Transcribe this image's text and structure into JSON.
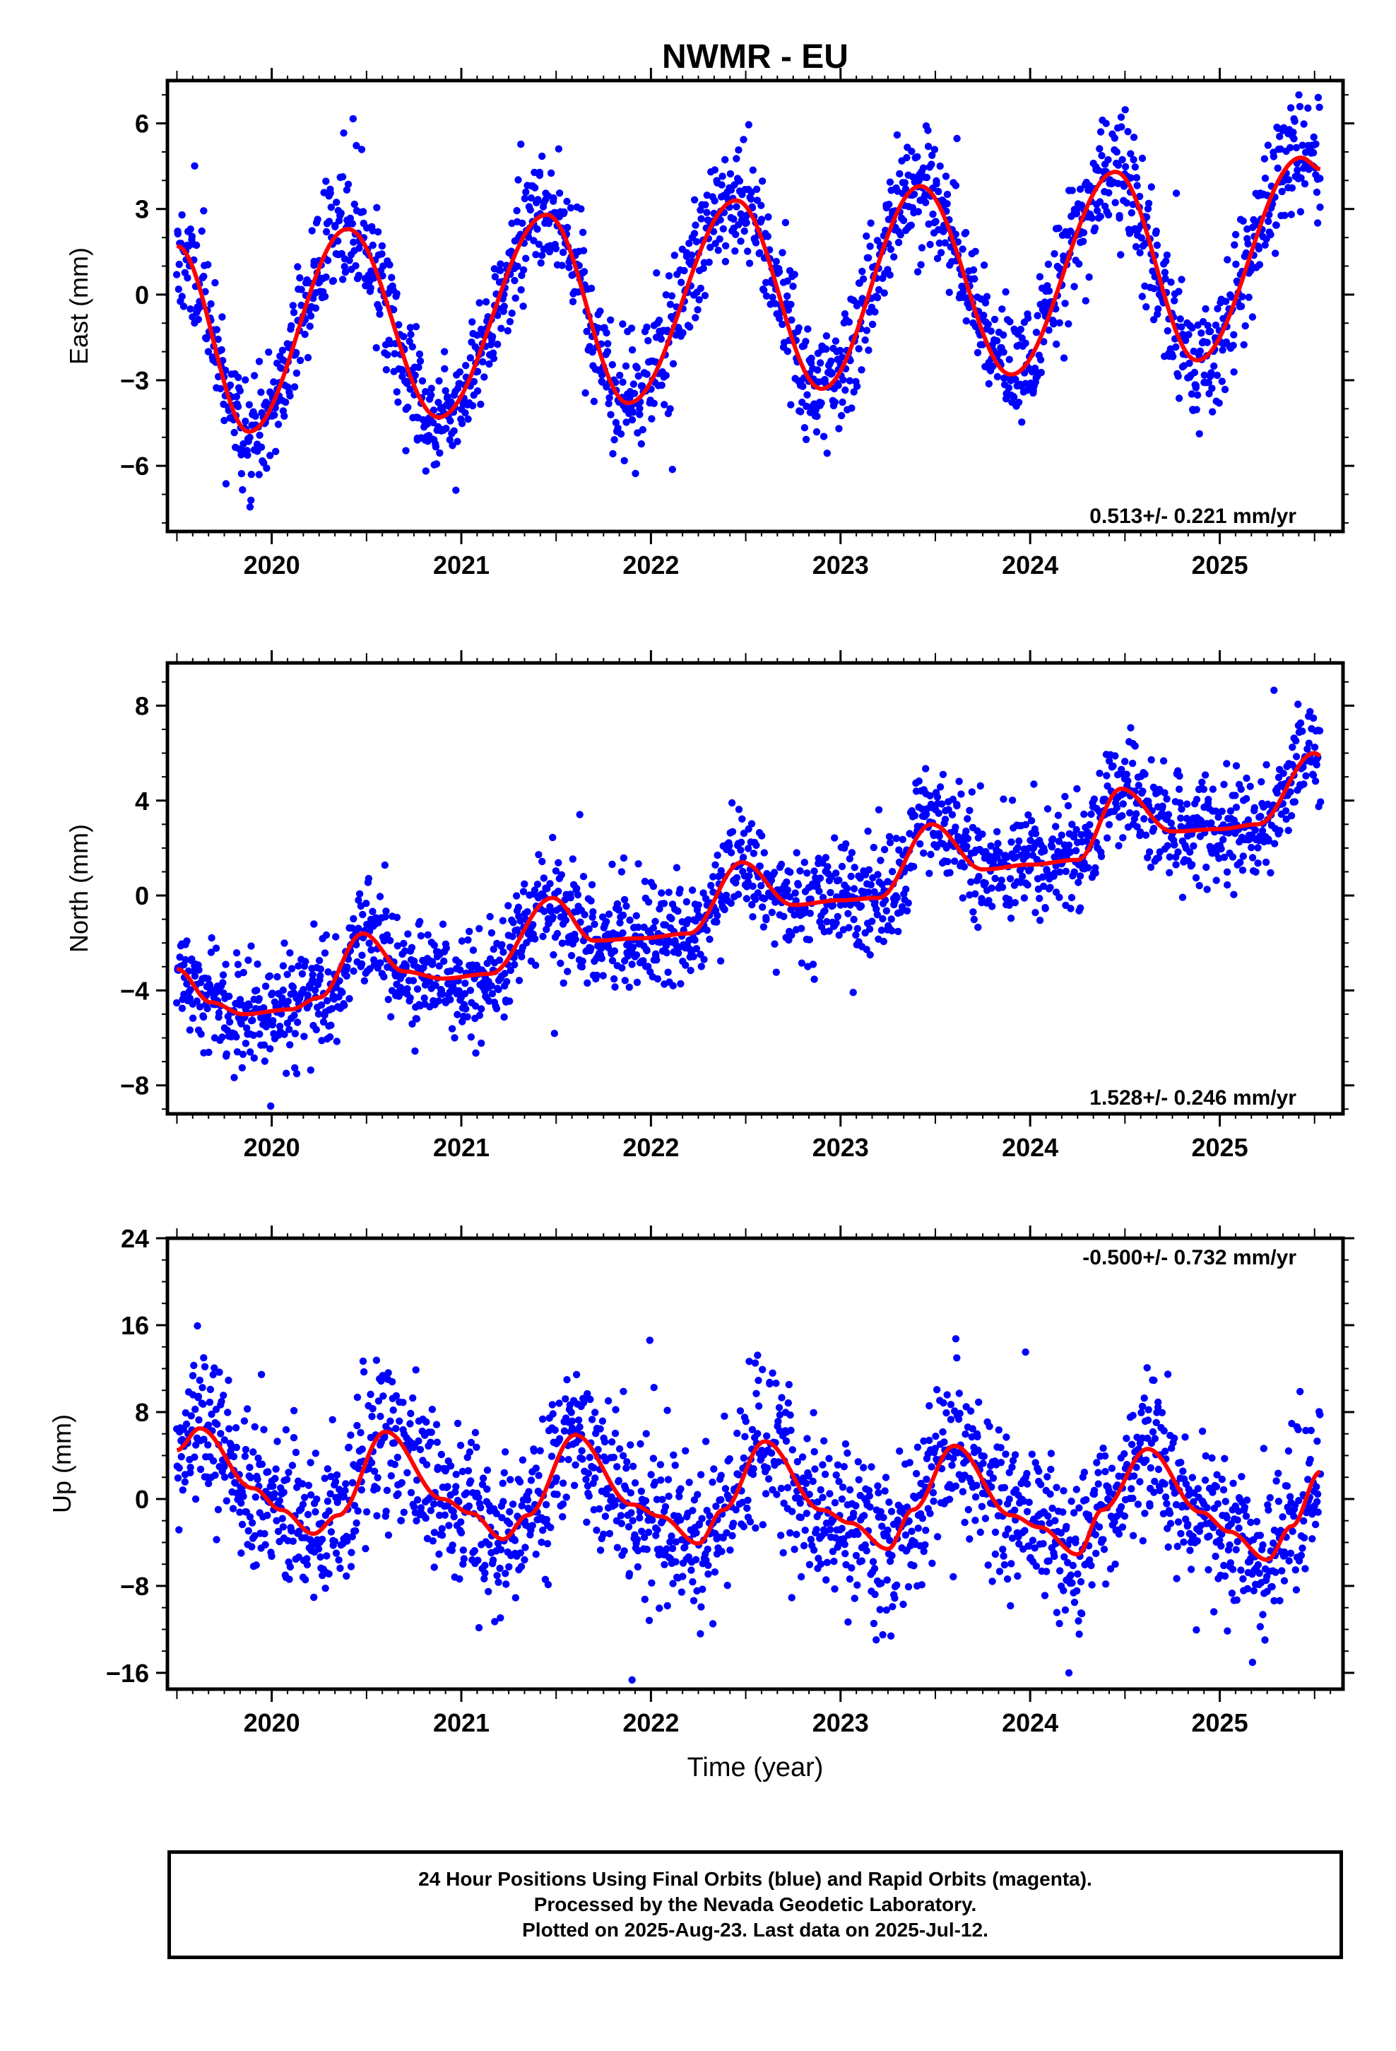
{
  "title": "NWMR - EU",
  "xlabel": "Time (year)",
  "caption": [
    "24 Hour Positions Using Final Orbits (blue) and Rapid Orbits (magenta).",
    "Processed by the Nevada Geodetic Laboratory.",
    "Plotted on 2025-Aug-23. Last data on 2025-Jul-12."
  ],
  "colors": {
    "points": "#0000ff",
    "trend": "#ff0000",
    "axes": "#000000"
  },
  "chart_data": [
    {
      "type": "scatter",
      "panel": "east",
      "ylabel": "East (mm)",
      "xlim": [
        2019.45,
        2025.65
      ],
      "ylim": [
        -8.3,
        7.5
      ],
      "xticks": [
        2020,
        2021,
        2022,
        2023,
        2024,
        2025
      ],
      "yticks": [
        6,
        3,
        0,
        -3,
        -6
      ],
      "rate_text": "0.513+/- 0.221 mm/yr",
      "rate_position": "bottom-right",
      "series": [
        {
          "kind": "daily-positions",
          "start": 2019.5,
          "end": 2025.53,
          "n": 1900,
          "noise_mm": 1.05,
          "seed": 11
        },
        {
          "kind": "trend-fit",
          "x": [
            2019.5,
            2019.88,
            2020.4,
            2020.88,
            2021.45,
            2021.88,
            2022.45,
            2022.9,
            2023.42,
            2023.9,
            2024.45,
            2024.88,
            2025.43,
            2025.53
          ],
          "y": [
            1.7,
            -4.8,
            2.3,
            -4.3,
            2.8,
            -3.8,
            3.3,
            -3.3,
            3.8,
            -2.8,
            4.3,
            -2.3,
            4.8,
            4.4
          ]
        }
      ]
    },
    {
      "type": "scatter",
      "panel": "north",
      "ylabel": "North (mm)",
      "xlim": [
        2019.45,
        2025.65
      ],
      "ylim": [
        -9.2,
        9.8
      ],
      "xticks": [
        2020,
        2021,
        2022,
        2023,
        2024,
        2025
      ],
      "yticks": [
        8,
        4,
        0,
        -4,
        -8
      ],
      "rate_text": "1.528+/- 0.246 mm/yr",
      "rate_position": "bottom-right",
      "series": [
        {
          "kind": "daily-positions",
          "start": 2019.5,
          "end": 2025.53,
          "n": 1900,
          "noise_mm": 1.1,
          "seed": 23
        },
        {
          "kind": "trend-fit",
          "x": [
            2019.5,
            2019.68,
            2019.85,
            2020.1,
            2020.25,
            2020.48,
            2020.7,
            2020.9,
            2021.15,
            2021.48,
            2021.7,
            2021.95,
            2022.2,
            2022.48,
            2022.75,
            2023.0,
            2023.2,
            2023.48,
            2023.75,
            2024.0,
            2024.25,
            2024.48,
            2024.75,
            2025.0,
            2025.2,
            2025.5,
            2025.53
          ],
          "y": [
            -3.1,
            -4.5,
            -5.0,
            -4.8,
            -4.3,
            -1.6,
            -3.2,
            -3.5,
            -3.3,
            -0.1,
            -1.9,
            -1.8,
            -1.6,
            1.4,
            -0.4,
            -0.2,
            -0.1,
            3.0,
            1.1,
            1.3,
            1.5,
            4.5,
            2.7,
            2.8,
            3.0,
            6.0,
            5.9
          ]
        }
      ]
    },
    {
      "type": "scatter",
      "panel": "up",
      "ylabel": "Up (mm)",
      "xlim": [
        2019.45,
        2025.65
      ],
      "ylim": [
        -17.5,
        24.0
      ],
      "xticks": [
        2020,
        2021,
        2022,
        2023,
        2024,
        2025
      ],
      "yticks": [
        24,
        16,
        8,
        0,
        -8,
        -16
      ],
      "rate_text": "-0.500+/- 0.732 mm/yr",
      "rate_position": "top-right",
      "series": [
        {
          "kind": "daily-positions",
          "start": 2019.5,
          "end": 2025.53,
          "n": 1900,
          "noise_mm": 3.6,
          "seed": 37
        },
        {
          "kind": "trend-fit",
          "x": [
            2019.5,
            2019.62,
            2019.9,
            2020.05,
            2020.22,
            2020.35,
            2020.6,
            2020.9,
            2021.05,
            2021.22,
            2021.35,
            2021.6,
            2021.9,
            2022.05,
            2022.25,
            2022.38,
            2022.6,
            2022.9,
            2023.05,
            2023.25,
            2023.38,
            2023.6,
            2023.9,
            2024.05,
            2024.25,
            2024.38,
            2024.62,
            2024.9,
            2025.05,
            2025.25,
            2025.38,
            2025.53
          ],
          "y": [
            4.5,
            6.5,
            1.0,
            -1.0,
            -3.2,
            -1.5,
            6.2,
            0.0,
            -1.3,
            -3.7,
            -1.5,
            5.9,
            -0.5,
            -1.6,
            -4.1,
            -1.0,
            5.3,
            -1.0,
            -2.2,
            -4.6,
            -1.0,
            4.9,
            -1.5,
            -2.6,
            -5.1,
            -1.0,
            4.6,
            -1.2,
            -3.0,
            -5.6,
            -2.5,
            2.5
          ]
        }
      ]
    }
  ]
}
